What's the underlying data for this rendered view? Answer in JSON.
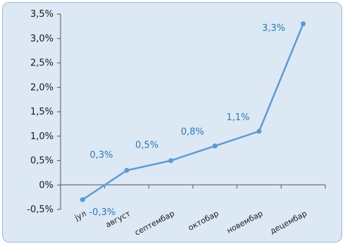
{
  "chart_data": {
    "type": "line",
    "categories": [
      "јул",
      "август",
      "септембар",
      "октобар",
      "новембар",
      "децембар"
    ],
    "values": [
      -0.3,
      0.3,
      0.5,
      0.8,
      1.1,
      3.3
    ],
    "data_labels": [
      "-0,3%",
      "0,3%",
      "0,5%",
      "0,8%",
      "1,1%",
      "3,3%"
    ],
    "yticks": [
      "-0,5%",
      "0%",
      "0,5%",
      "1,0%",
      "1,5%",
      "2,0%",
      "2,5%",
      "3,0%",
      "3,5%"
    ],
    "ylim": [
      -0.5,
      3.5
    ],
    "grid": false,
    "line_color": "#5b9bd5",
    "label_color": "#2a7bb1"
  }
}
